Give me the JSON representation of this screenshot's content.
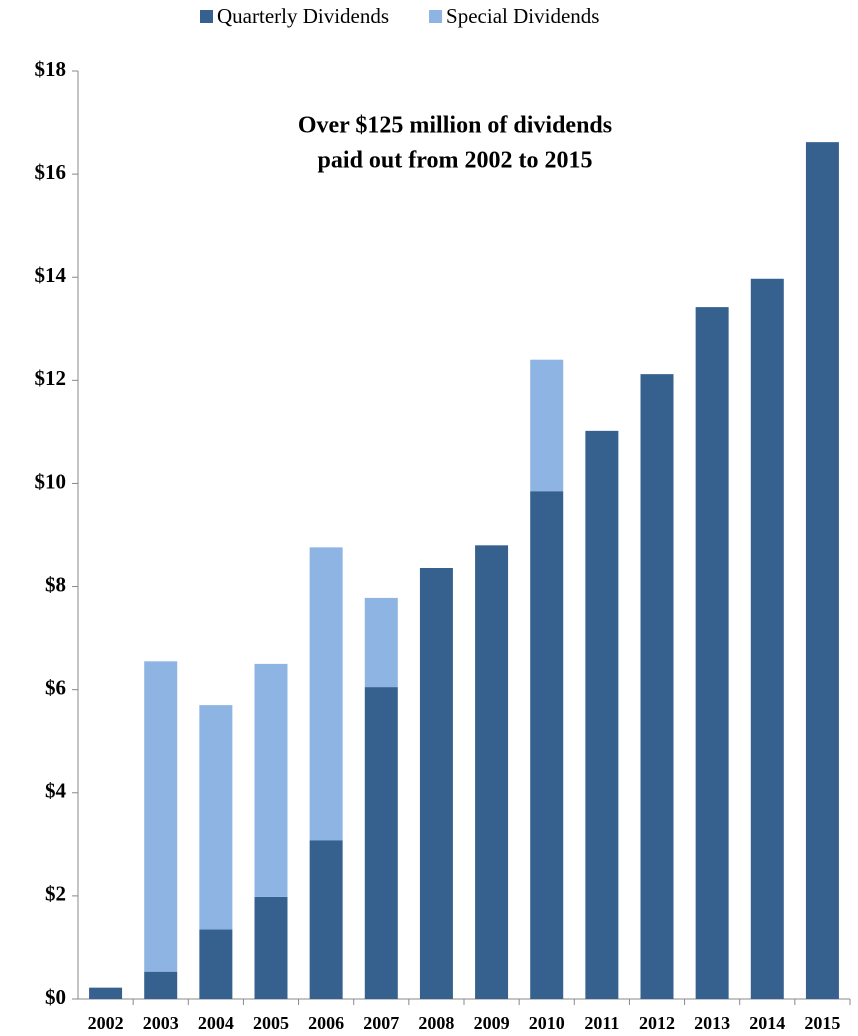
{
  "chart_data": {
    "type": "stacked_bar",
    "annotation": [
      "Over $125 million of dividends",
      "paid out from 2002 to 2015"
    ],
    "categories": [
      "2002",
      "2003",
      "2004",
      "2005",
      "2006",
      "2007",
      "2008",
      "2009",
      "2010",
      "2011",
      "2012",
      "2013",
      "2014",
      "2015"
    ],
    "series": [
      {
        "name": "Quarterly Dividends",
        "color": "#36618f",
        "values": [
          0.22,
          0.53,
          1.35,
          1.98,
          3.08,
          6.05,
          8.36,
          8.8,
          9.85,
          11.02,
          12.12,
          13.42,
          13.97,
          16.62
        ]
      },
      {
        "name": "Special Dividends",
        "color": "#8db4e2",
        "values": [
          0,
          6.02,
          4.35,
          4.52,
          5.68,
          1.73,
          0,
          0,
          2.55,
          0,
          0,
          0,
          0,
          0
        ]
      }
    ],
    "ylim": [
      0,
      18
    ],
    "yticks": [
      {
        "value": 0,
        "label": "$0"
      },
      {
        "value": 2,
        "label": "$2"
      },
      {
        "value": 4,
        "label": "$4"
      },
      {
        "value": 6,
        "label": "$6"
      },
      {
        "value": 8,
        "label": "$8"
      },
      {
        "value": 10,
        "label": "$10"
      },
      {
        "value": 12,
        "label": "$12"
      },
      {
        "value": 14,
        "label": "$14"
      },
      {
        "value": 16,
        "label": "$16"
      },
      {
        "value": 18,
        "label": "$18"
      }
    ],
    "legend": "top"
  }
}
